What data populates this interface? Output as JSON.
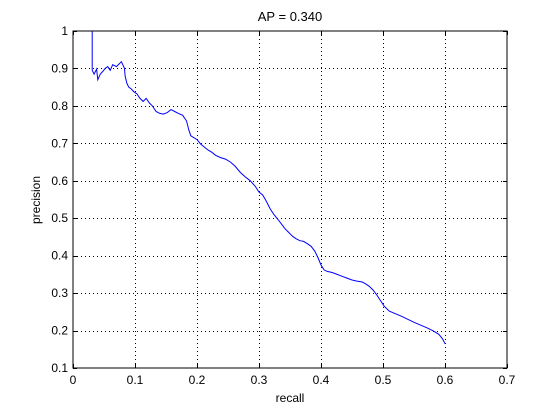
{
  "chart_data": {
    "type": "line",
    "title": "AP = 0.340",
    "xlabel": "recall",
    "ylabel": "precision",
    "xlim": [
      0,
      0.7
    ],
    "ylim": [
      0.1,
      1
    ],
    "xticks": [
      "0",
      "0.1",
      "0.2",
      "0.3",
      "0.4",
      "0.5",
      "0.6",
      "0.7"
    ],
    "yticks": [
      "0.1",
      "0.2",
      "0.3",
      "0.4",
      "0.5",
      "0.6",
      "0.7",
      "0.8",
      "0.9",
      "1"
    ],
    "grid": true,
    "line_color": "#0000ff",
    "series": [
      {
        "x": [
          0.031,
          0.031,
          0.034,
          0.038,
          0.04,
          0.044,
          0.048,
          0.052,
          0.056,
          0.06,
          0.064,
          0.07,
          0.078,
          0.083,
          0.084,
          0.087,
          0.09,
          0.094,
          0.098,
          0.103,
          0.108,
          0.113,
          0.118,
          0.123,
          0.128,
          0.134,
          0.14,
          0.146,
          0.152,
          0.158,
          0.164,
          0.17,
          0.177,
          0.183,
          0.187,
          0.19,
          0.195,
          0.2,
          0.206,
          0.212,
          0.218,
          0.224,
          0.23,
          0.238,
          0.246,
          0.254,
          0.262,
          0.27,
          0.278,
          0.286,
          0.294,
          0.3,
          0.306,
          0.312,
          0.318,
          0.324,
          0.33,
          0.336,
          0.342,
          0.348,
          0.354,
          0.36,
          0.366,
          0.372,
          0.378,
          0.384,
          0.39,
          0.395,
          0.4,
          0.405,
          0.41,
          0.418,
          0.426,
          0.434,
          0.442,
          0.45,
          0.458,
          0.466,
          0.472,
          0.478,
          0.484,
          0.49,
          0.496,
          0.502,
          0.51,
          0.52,
          0.53,
          0.54,
          0.55,
          0.56,
          0.57,
          0.58,
          0.59,
          0.596,
          0.6
        ],
        "y": [
          1.0,
          0.895,
          0.885,
          0.898,
          0.87,
          0.885,
          0.892,
          0.9,
          0.905,
          0.895,
          0.91,
          0.905,
          0.918,
          0.9,
          0.88,
          0.86,
          0.85,
          0.845,
          0.838,
          0.832,
          0.82,
          0.812,
          0.82,
          0.808,
          0.8,
          0.785,
          0.78,
          0.778,
          0.782,
          0.79,
          0.785,
          0.78,
          0.775,
          0.76,
          0.735,
          0.72,
          0.715,
          0.71,
          0.698,
          0.69,
          0.682,
          0.676,
          0.668,
          0.662,
          0.658,
          0.65,
          0.638,
          0.622,
          0.61,
          0.6,
          0.585,
          0.57,
          0.562,
          0.545,
          0.525,
          0.51,
          0.498,
          0.485,
          0.472,
          0.462,
          0.452,
          0.445,
          0.44,
          0.438,
          0.432,
          0.425,
          0.412,
          0.395,
          0.375,
          0.362,
          0.358,
          0.355,
          0.35,
          0.345,
          0.34,
          0.335,
          0.332,
          0.33,
          0.325,
          0.318,
          0.308,
          0.295,
          0.28,
          0.265,
          0.252,
          0.245,
          0.238,
          0.23,
          0.222,
          0.215,
          0.208,
          0.2,
          0.19,
          0.178,
          0.165
        ]
      }
    ]
  }
}
